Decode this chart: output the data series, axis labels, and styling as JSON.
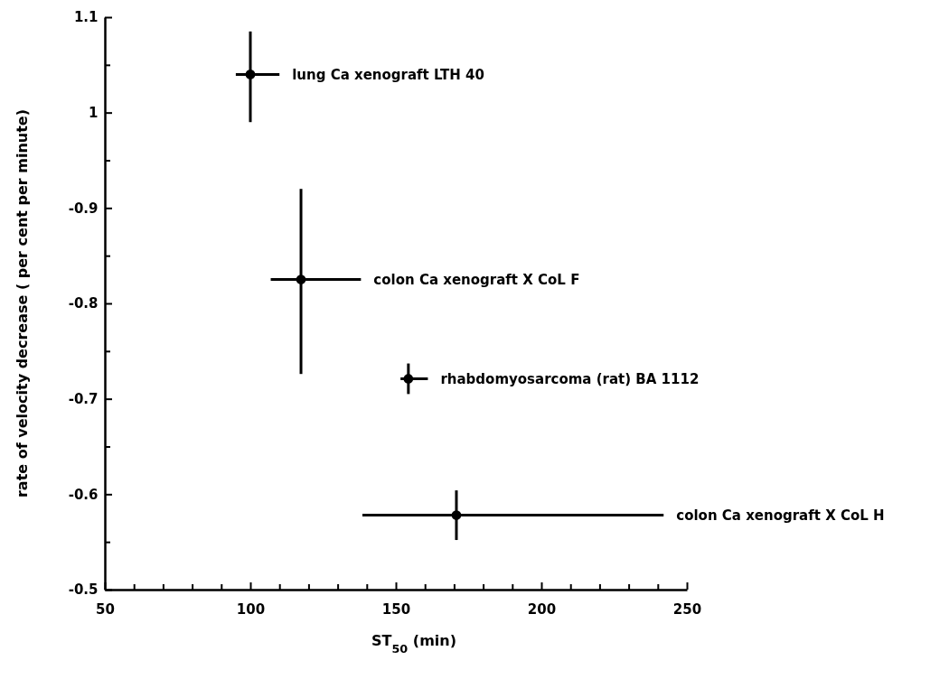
{
  "chart_data": {
    "type": "scatter",
    "xlabel": "ST$_{50}$ (min)",
    "ylabel": "rate of velocity decrease ( per cent per minute)",
    "xlim": [
      50,
      250
    ],
    "xticks": [
      50,
      {
        "value": 60,
        "label": null
      },
      {
        "value": 70,
        "label": null
      },
      {
        "value": 80,
        "label": null
      },
      {
        "value": 90,
        "label": null
      },
      100,
      {
        "value": 110,
        "label": null
      },
      {
        "value": 120,
        "label": null
      },
      {
        "value": 130,
        "label": null
      },
      {
        "value": 140,
        "label": null
      },
      150,
      {
        "value": 160,
        "label": null
      },
      {
        "value": 170,
        "label": null
      },
      {
        "value": 180,
        "label": null
      },
      {
        "value": 190,
        "label": null
      },
      200,
      {
        "value": 210,
        "label": null
      },
      {
        "value": 220,
        "label": null
      },
      {
        "value": 230,
        "label": null
      },
      {
        "value": 240,
        "label": null
      },
      250
    ],
    "ylim": [
      -0.5,
      -1.1
    ],
    "yticks": [
      -0.5,
      {
        "value": -0.55,
        "label": null
      },
      -0.6,
      {
        "value": -0.65,
        "label": null
      },
      -0.7,
      {
        "value": -0.75,
        "label": null
      },
      -0.8,
      {
        "value": -0.85,
        "label": null
      },
      -0.9,
      {
        "value": -0.95,
        "label": null
      },
      {
        "value": -1,
        "label": "1"
      },
      {
        "value": -1.05,
        "label": null
      },
      {
        "value": -1.1,
        "label": "1.1"
      }
    ],
    "marker": "circle",
    "series": [
      {
        "color": "#000000",
        "x": [
          100,
          117.4,
          154.3,
          170.8
        ],
        "values": [
          -1.04,
          -0.825,
          -0.721,
          -0.578
        ],
        "errors": [
          [
            -1.085,
            -0.99
          ],
          [
            -0.92,
            -0.726
          ],
          [
            -0.737,
            -0.705
          ],
          [
            -0.604,
            -0.552
          ]
        ],
        "xerrors": [
          [
            95,
            110
          ],
          [
            107,
            138
          ],
          [
            151.6,
            161
          ],
          [
            138.5,
            242
          ]
        ]
      }
    ],
    "annotations": [
      "lung Ca xenograft LTH 40",
      "colon Ca xenograft X CoL F",
      "rhabdomyosarcoma (rat) BA 1112",
      "colon Ca xenograft X CoL H"
    ]
  }
}
